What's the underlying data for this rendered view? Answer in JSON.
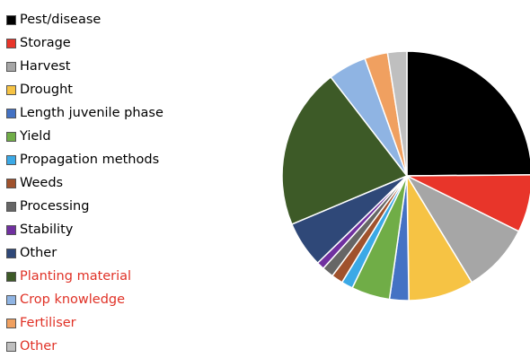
{
  "chart_data": {
    "type": "pie",
    "title": "",
    "categories": [
      "Pest/disease",
      "Storage",
      "Harvest",
      "Drought",
      "Length juvenile phase",
      "Yield",
      "Propagation methods",
      "Weeds",
      "Processing",
      "Stability",
      "Other",
      "Planting material",
      "Crop knowledge",
      "Fertiliser",
      "Other"
    ],
    "values": [
      25,
      7.5,
      9,
      8.5,
      2.5,
      5,
      1.5,
      1.5,
      1.5,
      1,
      6,
      21,
      5,
      3,
      2.5
    ],
    "colors": [
      "#000000",
      "#e8352a",
      "#a6a6a6",
      "#f6c344",
      "#4472c4",
      "#70ad47",
      "#3ba9e6",
      "#a0522d",
      "#666666",
      "#7030a0",
      "#2f4878",
      "#3d5a27",
      "#8fb4e3",
      "#f0a060",
      "#bfbfbf"
    ],
    "label_colors": [
      "#000000",
      "#000000",
      "#000000",
      "#000000",
      "#000000",
      "#000000",
      "#000000",
      "#000000",
      "#000000",
      "#000000",
      "#000000",
      "#e03126",
      "#e03126",
      "#e03126",
      "#e03126"
    ],
    "legend_position": "left",
    "start_angle_deg": 0,
    "direction": "clockwise"
  }
}
